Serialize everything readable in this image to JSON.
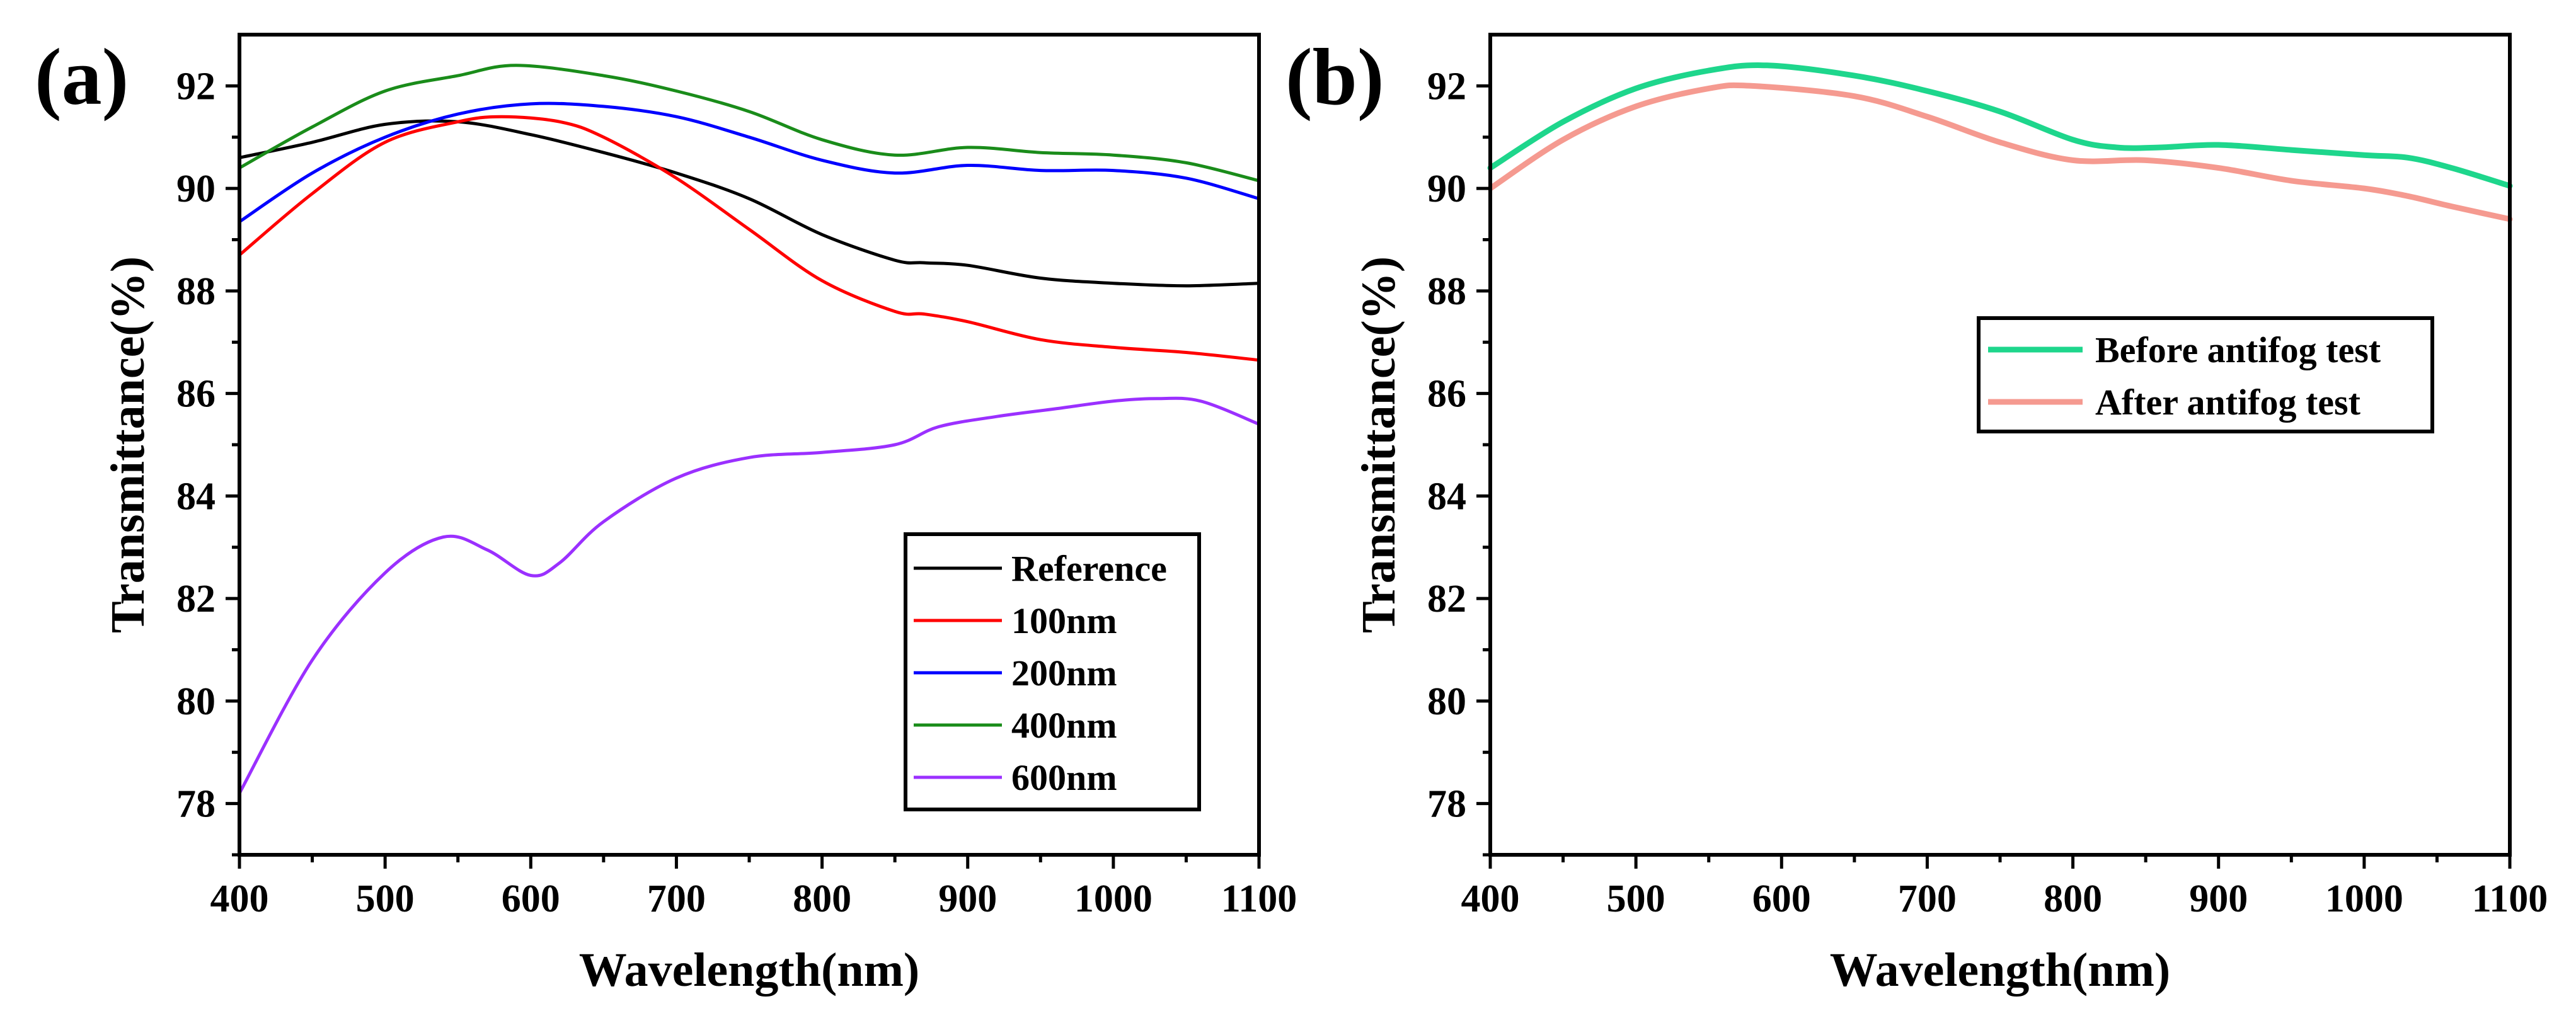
{
  "chart_data": [
    {
      "id": "a",
      "type": "line",
      "panel_label": "(a)",
      "xlabel": "Wavelength(nm)",
      "ylabel": "Transmittance(%)",
      "xlim": [
        400,
        1100
      ],
      "ylim": [
        77,
        93
      ],
      "xticks": [
        400,
        500,
        600,
        700,
        800,
        900,
        1000,
        1100
      ],
      "yticks": [
        78,
        80,
        82,
        84,
        86,
        88,
        90,
        92
      ],
      "legend_position": "bottom-right",
      "series": [
        {
          "name": "Reference",
          "color": "#000000",
          "x": [
            400,
            450,
            500,
            550,
            600,
            650,
            700,
            750,
            800,
            850,
            870,
            900,
            950,
            1000,
            1050,
            1100
          ],
          "y": [
            90.6,
            90.9,
            91.25,
            91.3,
            91.05,
            90.7,
            90.3,
            89.8,
            89.1,
            88.6,
            88.55,
            88.5,
            88.25,
            88.15,
            88.1,
            88.15
          ]
        },
        {
          "name": "100nm",
          "color": "#ff0000",
          "x": [
            400,
            450,
            500,
            550,
            580,
            620,
            650,
            700,
            750,
            800,
            850,
            870,
            900,
            950,
            1000,
            1050,
            1100
          ],
          "y": [
            88.7,
            89.9,
            90.9,
            91.3,
            91.4,
            91.3,
            91.0,
            90.2,
            89.2,
            88.2,
            87.6,
            87.55,
            87.4,
            87.05,
            86.9,
            86.8,
            86.65
          ]
        },
        {
          "name": "200nm",
          "color": "#0000ff",
          "x": [
            400,
            450,
            500,
            550,
            600,
            650,
            700,
            750,
            800,
            850,
            900,
            950,
            1000,
            1050,
            1100
          ],
          "y": [
            89.35,
            90.3,
            91.0,
            91.45,
            91.65,
            91.6,
            91.4,
            91.0,
            90.55,
            90.3,
            90.45,
            90.35,
            90.35,
            90.2,
            89.8
          ]
        },
        {
          "name": "400nm",
          "color": "#1a8c1a",
          "x": [
            400,
            450,
            500,
            550,
            590,
            650,
            700,
            750,
            800,
            850,
            900,
            950,
            1000,
            1050,
            1100
          ],
          "y": [
            90.4,
            91.2,
            91.9,
            92.2,
            92.4,
            92.2,
            91.9,
            91.5,
            90.95,
            90.65,
            90.8,
            90.7,
            90.65,
            90.5,
            90.15
          ]
        },
        {
          "name": "600nm",
          "color": "#9b30ff",
          "x": [
            400,
            450,
            500,
            540,
            570,
            600,
            620,
            650,
            700,
            750,
            800,
            850,
            880,
            920,
            960,
            1000,
            1030,
            1060,
            1100
          ],
          "y": [
            78.2,
            80.8,
            82.5,
            83.2,
            82.95,
            82.45,
            82.7,
            83.5,
            84.35,
            84.75,
            84.85,
            85.0,
            85.35,
            85.55,
            85.7,
            85.85,
            85.9,
            85.85,
            85.4
          ]
        }
      ]
    },
    {
      "id": "b",
      "type": "line",
      "panel_label": "(b)",
      "xlabel": "Wavelength(nm)",
      "ylabel": "Transmittance(%)",
      "xlim": [
        400,
        1100
      ],
      "ylim": [
        77,
        93
      ],
      "xticks": [
        400,
        500,
        600,
        700,
        800,
        900,
        1000,
        1100
      ],
      "yticks": [
        78,
        80,
        82,
        84,
        86,
        88,
        90,
        92
      ],
      "legend_position": "center-right",
      "series": [
        {
          "name": "Before antifog test",
          "color": "#1ed68c",
          "x": [
            400,
            450,
            500,
            550,
            590,
            650,
            700,
            750,
            800,
            830,
            860,
            900,
            950,
            1000,
            1030,
            1060,
            1100
          ],
          "y": [
            90.4,
            91.3,
            91.95,
            92.3,
            92.4,
            92.2,
            91.9,
            91.5,
            90.95,
            90.8,
            90.8,
            90.85,
            90.75,
            90.65,
            90.6,
            90.4,
            90.05
          ]
        },
        {
          "name": "After antifog test",
          "color": "#f59a90",
          "x": [
            400,
            450,
            500,
            550,
            580,
            650,
            700,
            750,
            800,
            850,
            900,
            950,
            1000,
            1030,
            1060,
            1100
          ],
          "y": [
            90.0,
            90.95,
            91.6,
            91.95,
            92.0,
            91.8,
            91.4,
            90.9,
            90.55,
            90.55,
            90.4,
            90.15,
            90.0,
            89.85,
            89.65,
            89.4
          ]
        }
      ]
    }
  ]
}
